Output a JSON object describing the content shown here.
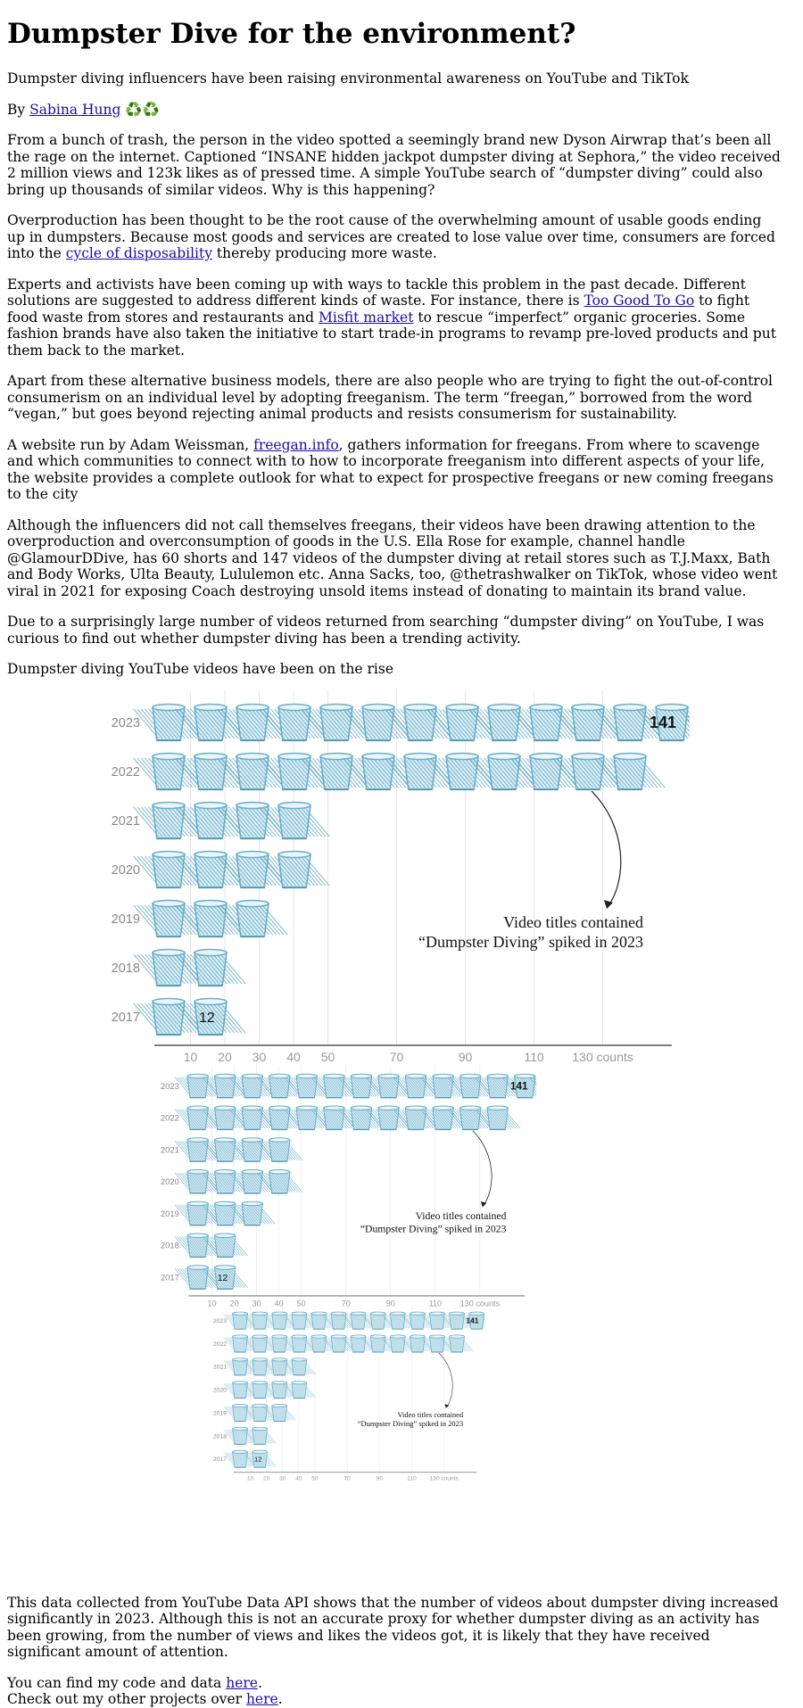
{
  "article": {
    "title": "Dumpster Dive for the environment?",
    "subtitle": "Dumpster diving influencers have been raising environmental awareness on YouTube and TikTok",
    "byline_prefix": "By ",
    "author": "Sabina Hung",
    "author_emoji": "♻️♻️",
    "p1": "From a bunch of trash, the person in the video spotted a seemingly brand new Dyson Airwrap that’s been all the rage on the internet. Captioned “INSANE hidden jackpot dumpster diving at Sephora,” the video received 2 million views and 123k likes as of pressed time. A simple YouTube search of “dumpster diving” could also bring up thousands of similar videos. Why is this happening?",
    "p2_before": "Overproduction has been thought to be the root cause of the overwhelming amount of usable goods ending up in dumpsters. Because most goods and services are created to lose value over time, consumers are forced into the ",
    "p2_link": "cycle of disposability",
    "p2_after": " thereby producing more waste.",
    "p3_before": "Experts and activists have been coming up with ways to tackle this problem in the past decade. Different solutions are suggested to address different kinds of waste. For instance, there is ",
    "p3_link1": "Too Good To Go",
    "p3_mid": " to fight food waste from stores and restaurants and ",
    "p3_link2": "Misfit market",
    "p3_after": " to rescue “imperfect” organic groceries. Some fashion brands have also taken the initiative to start trade-in programs to revamp pre-loved products and put them back to the market.",
    "p4": "Apart from these alternative business models, there are also people who are trying to fight the out-of-control consumerism on an individual level by adopting freeganism. The term “freegan,” borrowed from the word “vegan,” but goes beyond rejecting animal products and resists consumerism for sustainability.",
    "p5_before": "A website run by Adam Weissman, ",
    "p5_link": "freegan.info",
    "p5_after": ", gathers information for freegans. From where to scavenge and which communities to connect with to how to incorporate freeganism into different aspects of your life, the website provides a complete outlook for what to expect for prospective freegans or new coming freegans to the city",
    "p6": "Although the influencers did not call themselves freegans, their videos have been drawing attention to the overproduction and overconsumption of goods in the U.S. Ella Rose for example, channel handle @GlamourDDive, has 60 shorts and 147 videos of the dumpster diving at retail stores such as T.J.Maxx, Bath and Body Works, Ulta Beauty, Lululemon etc. Anna Sacks, too, @thetrashwalker on TikTok, whose video went viral in 2021 for exposing Coach destroying unsold items instead of donating to maintain its brand value.",
    "p7": "Due to a surprisingly large number of videos returned from searching “dumpster diving” on YouTube, I was curious to find out whether dumpster diving has been a trending activity.",
    "chart_heading": "Dumpster diving YouTube videos have been on the rise",
    "p8": "This data collected from YouTube Data API shows that the number of videos about dumpster diving increased significantly in 2023. Although this is not an accurate proxy for whether dumpster diving as an activity has been growing, from the number of views and likes the videos got, it is likely that they have received significant amount of attention.",
    "code_before": "You can find my code and data ",
    "code_link": "here",
    "code_after": ".",
    "projects_before": "Check out my other projects over ",
    "projects_link": "here",
    "projects_after": "."
  },
  "chart_data": {
    "type": "bar",
    "style": "isotype (wastebasket icons)",
    "categories": [
      "2017",
      "2018",
      "2019",
      "2020",
      "2021",
      "2022",
      "2023"
    ],
    "values": [
      12,
      20,
      30,
      40,
      40,
      120,
      141
    ],
    "x_ticks": [
      "10",
      "20",
      "30",
      "40",
      "50",
      "70",
      "90",
      "110",
      "130 counts"
    ],
    "x_tick_values": [
      10,
      20,
      30,
      40,
      50,
      70,
      90,
      110,
      130
    ],
    "unit_per_icon": 10,
    "value_labels": {
      "2017": "12",
      "2023": "141"
    },
    "annotation": [
      "Video titles contained",
      "“Dumpster Diving” spiked in 2023"
    ],
    "xlim": [
      0,
      145
    ],
    "grid": true,
    "icon": "wastebasket-icon",
    "icon_color": "#6aaec7",
    "copies": 3
  }
}
